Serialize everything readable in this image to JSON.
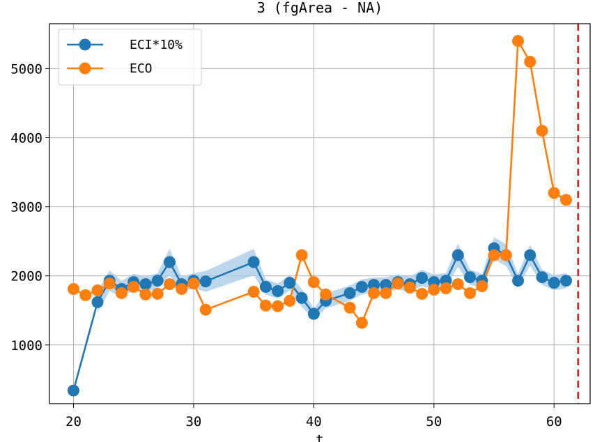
{
  "chart_data": {
    "type": "line",
    "title": "3 (fgArea - NA)",
    "xlabel": "t",
    "ylabel": "",
    "xlim": [
      18.0,
      63.0
    ],
    "ylim": [
      150,
      5650
    ],
    "x_ticks": [
      20,
      30,
      40,
      50,
      60
    ],
    "x_tick_labels": [
      "20",
      "30",
      "40",
      "50",
      "60"
    ],
    "y_ticks": [
      1000,
      2000,
      3000,
      4000,
      5000
    ],
    "y_tick_labels": [
      "1000",
      "2000",
      "3000",
      "4000",
      "5000"
    ],
    "grid": true,
    "legend_position": "upper-left",
    "vline": {
      "x": 62,
      "color": "#e31a1c",
      "style": "dashed"
    },
    "series": [
      {
        "name": "ECI*10%",
        "color": "#1f77b4",
        "band_color": "#a6c8e4",
        "x": [
          20,
          22,
          23,
          24,
          25,
          26,
          27,
          28,
          29,
          30,
          31,
          35,
          36,
          37,
          38,
          39,
          40,
          41,
          43,
          44,
          45,
          46,
          47,
          48,
          49,
          50,
          51,
          52,
          53,
          54,
          55,
          56,
          57,
          58,
          59,
          60,
          61
        ],
        "values": [
          340,
          1620,
          1930,
          1810,
          1910,
          1880,
          1930,
          2200,
          1880,
          1930,
          1920,
          2200,
          1840,
          1780,
          1900,
          1680,
          1450,
          1640,
          1750,
          1840,
          1870,
          1870,
          1910,
          1880,
          1970,
          1910,
          1930,
          2300,
          1980,
          1930,
          2400,
          2300,
          1930,
          2300,
          1980,
          1900,
          1930
        ],
        "band_x": [
          22,
          23,
          24,
          25,
          26,
          27,
          28,
          29,
          30,
          31,
          35,
          36,
          37,
          38,
          39,
          40,
          41,
          43,
          44,
          45,
          46,
          47,
          48,
          49,
          50,
          51,
          52,
          53,
          54,
          55,
          56,
          57,
          58,
          59,
          60,
          61
        ],
        "band_lower": [
          1470,
          1780,
          1690,
          1790,
          1770,
          1820,
          2010,
          1770,
          1820,
          1770,
          2010,
          1730,
          1670,
          1790,
          1550,
          1370,
          1530,
          1640,
          1730,
          1760,
          1760,
          1800,
          1770,
          1850,
          1800,
          1820,
          2130,
          1870,
          1830,
          2240,
          2140,
          1830,
          2150,
          1870,
          1790,
          1820
        ],
        "band_upper": [
          1770,
          2080,
          1930,
          2030,
          1990,
          2040,
          2390,
          1990,
          2040,
          2070,
          2390,
          1950,
          1890,
          2010,
          1810,
          1530,
          1750,
          1860,
          1950,
          1980,
          1980,
          2020,
          1990,
          2090,
          2020,
          2040,
          2470,
          2090,
          2030,
          2560,
          2460,
          2030,
          2450,
          2090,
          2010,
          2040
        ]
      },
      {
        "name": "ECO",
        "color": "#ff7f0e",
        "x": [
          20,
          21,
          22,
          23,
          24,
          25,
          26,
          27,
          28,
          29,
          30,
          31,
          35,
          36,
          37,
          38,
          39,
          40,
          41,
          43,
          44,
          45,
          46,
          47,
          48,
          49,
          50,
          51,
          52,
          53,
          54,
          55,
          56,
          57,
          58,
          59,
          60,
          61
        ],
        "values": [
          1810,
          1720,
          1790,
          1890,
          1750,
          1840,
          1730,
          1740,
          1880,
          1810,
          1890,
          1510,
          1770,
          1570,
          1560,
          1640,
          2300,
          1910,
          1730,
          1540,
          1320,
          1750,
          1750,
          1890,
          1830,
          1740,
          1800,
          1820,
          1880,
          1750,
          1850,
          2300,
          2300,
          5400,
          5100,
          4100,
          3200,
          3100
        ]
      }
    ]
  }
}
